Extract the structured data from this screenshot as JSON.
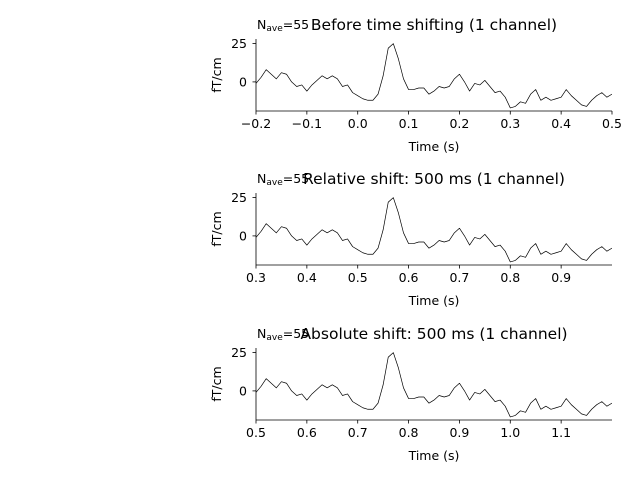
{
  "chart_data": [
    {
      "type": "line",
      "title": "Before time shifting (1 channel)",
      "nave_label": "N",
      "nave_sub": "ave",
      "nave_value": "=55",
      "xlabel": "Time (s)",
      "ylabel": "fT/cm",
      "xlim": [
        -0.2,
        0.5
      ],
      "ylim": [
        -19,
        28
      ],
      "xticks": [
        -0.2,
        -0.1,
        0.0,
        0.1,
        0.2,
        0.3,
        0.4,
        0.5
      ],
      "xtick_labels": [
        "−0.2",
        "−0.1",
        "0.0",
        "0.1",
        "0.2",
        "0.3",
        "0.4",
        "0.5"
      ],
      "yticks": [
        0,
        25
      ],
      "ytick_labels": [
        "0",
        "25"
      ],
      "line_color": "#000000",
      "series": [
        {
          "x": [
            -0.2,
            -0.19,
            -0.18,
            -0.17,
            -0.16,
            -0.15,
            -0.14,
            -0.13,
            -0.12,
            -0.11,
            -0.1,
            -0.09,
            -0.08,
            -0.07,
            -0.06,
            -0.05,
            -0.04,
            -0.03,
            -0.02,
            -0.01,
            0.0,
            0.01,
            0.02,
            0.03,
            0.04,
            0.05,
            0.06,
            0.07,
            0.08,
            0.09,
            0.1,
            0.11,
            0.12,
            0.13,
            0.14,
            0.15,
            0.16,
            0.17,
            0.18,
            0.19,
            0.2,
            0.21,
            0.22,
            0.23,
            0.24,
            0.25,
            0.26,
            0.27,
            0.28,
            0.29,
            0.3,
            0.31,
            0.32,
            0.33,
            0.34,
            0.35,
            0.36,
            0.37,
            0.38,
            0.39,
            0.4,
            0.41,
            0.42,
            0.43,
            0.44,
            0.45,
            0.46,
            0.47,
            0.48,
            0.49,
            0.5
          ],
          "y": [
            -1,
            3,
            8,
            5,
            2,
            6,
            5,
            0,
            -3,
            -2,
            -6,
            -2,
            1,
            4,
            2,
            4,
            2,
            -3,
            -2,
            -7,
            -9,
            -11,
            -12,
            -12,
            -8,
            4,
            22,
            25,
            15,
            2,
            -5,
            -5,
            -4,
            -4,
            -8,
            -6,
            -3,
            -4,
            -3,
            2,
            5,
            0,
            -6,
            -1,
            -2,
            1,
            -3,
            -7,
            -6,
            -10,
            -17,
            -16,
            -13,
            -14,
            -8,
            -5,
            -12,
            -10,
            -12,
            -11,
            -10,
            -5,
            -9,
            -12,
            -15,
            -16,
            -12,
            -9,
            -7,
            -10,
            -8
          ]
        }
      ]
    },
    {
      "type": "line",
      "title": "Relative shift: 500 ms (1 channel)",
      "nave_label": "N",
      "nave_sub": "ave",
      "nave_value": "=55",
      "xlabel": "Time (s)",
      "ylabel": "fT/cm",
      "xlim": [
        0.3,
        1.0
      ],
      "ylim": [
        -19,
        28
      ],
      "xticks": [
        0.3,
        0.4,
        0.5,
        0.6,
        0.7,
        0.8,
        0.9
      ],
      "xtick_labels": [
        "0.3",
        "0.4",
        "0.5",
        "0.6",
        "0.7",
        "0.8",
        "0.9"
      ],
      "yticks": [
        0,
        25
      ],
      "ytick_labels": [
        "0",
        "25"
      ],
      "line_color": "#000000",
      "series": [
        {
          "x": [
            0.3,
            0.31,
            0.32,
            0.33,
            0.34,
            0.35,
            0.36,
            0.37,
            0.38,
            0.39,
            0.4,
            0.41,
            0.42,
            0.43,
            0.44,
            0.45,
            0.46,
            0.47,
            0.48,
            0.49,
            0.5,
            0.51,
            0.52,
            0.53,
            0.54,
            0.55,
            0.56,
            0.57,
            0.58,
            0.59,
            0.6,
            0.61,
            0.62,
            0.63,
            0.64,
            0.65,
            0.66,
            0.67,
            0.68,
            0.69,
            0.7,
            0.71,
            0.72,
            0.73,
            0.74,
            0.75,
            0.76,
            0.77,
            0.78,
            0.79,
            0.8,
            0.81,
            0.82,
            0.83,
            0.84,
            0.85,
            0.86,
            0.87,
            0.88,
            0.89,
            0.9,
            0.91,
            0.92,
            0.93,
            0.94,
            0.95,
            0.96,
            0.97,
            0.98,
            0.99,
            1.0
          ],
          "y": [
            -1,
            3,
            8,
            5,
            2,
            6,
            5,
            0,
            -3,
            -2,
            -6,
            -2,
            1,
            4,
            2,
            4,
            2,
            -3,
            -2,
            -7,
            -9,
            -11,
            -12,
            -12,
            -8,
            4,
            22,
            25,
            15,
            2,
            -5,
            -5,
            -4,
            -4,
            -8,
            -6,
            -3,
            -4,
            -3,
            2,
            5,
            0,
            -6,
            -1,
            -2,
            1,
            -3,
            -7,
            -6,
            -10,
            -17,
            -16,
            -13,
            -14,
            -8,
            -5,
            -12,
            -10,
            -12,
            -11,
            -10,
            -5,
            -9,
            -12,
            -15,
            -16,
            -12,
            -9,
            -7,
            -10,
            -8
          ]
        }
      ]
    },
    {
      "type": "line",
      "title": "Absolute shift: 500 ms (1 channel)",
      "nave_label": "N",
      "nave_sub": "ave",
      "nave_value": "=55",
      "xlabel": "Time (s)",
      "ylabel": "fT/cm",
      "xlim": [
        0.5,
        1.2
      ],
      "ylim": [
        -19,
        28
      ],
      "xticks": [
        0.5,
        0.6,
        0.7,
        0.8,
        0.9,
        1.0,
        1.1
      ],
      "xtick_labels": [
        "0.5",
        "0.6",
        "0.7",
        "0.8",
        "0.9",
        "1.0",
        "1.1"
      ],
      "yticks": [
        0,
        25
      ],
      "ytick_labels": [
        "0",
        "25"
      ],
      "line_color": "#000000",
      "series": [
        {
          "x": [
            0.5,
            0.51,
            0.52,
            0.53,
            0.54,
            0.55,
            0.56,
            0.57,
            0.58,
            0.59,
            0.6,
            0.61,
            0.62,
            0.63,
            0.64,
            0.65,
            0.66,
            0.67,
            0.68,
            0.69,
            0.7,
            0.71,
            0.72,
            0.73,
            0.74,
            0.75,
            0.76,
            0.77,
            0.78,
            0.79,
            0.8,
            0.81,
            0.82,
            0.83,
            0.84,
            0.85,
            0.86,
            0.87,
            0.88,
            0.89,
            0.9,
            0.91,
            0.92,
            0.93,
            0.94,
            0.95,
            0.96,
            0.97,
            0.98,
            0.99,
            1.0,
            1.01,
            1.02,
            1.03,
            1.04,
            1.05,
            1.06,
            1.07,
            1.08,
            1.09,
            1.1,
            1.11,
            1.12,
            1.13,
            1.14,
            1.15,
            1.16,
            1.17,
            1.18,
            1.19,
            1.2
          ],
          "y": [
            -1,
            3,
            8,
            5,
            2,
            6,
            5,
            0,
            -3,
            -2,
            -6,
            -2,
            1,
            4,
            2,
            4,
            2,
            -3,
            -2,
            -7,
            -9,
            -11,
            -12,
            -12,
            -8,
            4,
            22,
            25,
            15,
            2,
            -5,
            -5,
            -4,
            -4,
            -8,
            -6,
            -3,
            -4,
            -3,
            2,
            5,
            0,
            -6,
            -1,
            -2,
            1,
            -3,
            -7,
            -6,
            -10,
            -17,
            -16,
            -13,
            -14,
            -8,
            -5,
            -12,
            -10,
            -12,
            -11,
            -10,
            -5,
            -9,
            -12,
            -15,
            -16,
            -12,
            -9,
            -7,
            -10,
            -8
          ]
        }
      ]
    }
  ]
}
